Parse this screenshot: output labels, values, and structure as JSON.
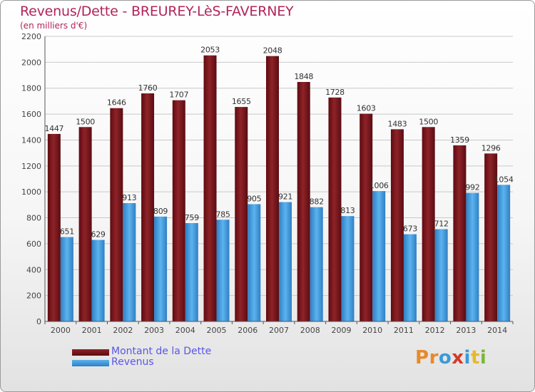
{
  "title": "Revenus/Dette - BREUREY-LèS-FAVERNEY",
  "subtitle": "(en milliers d'€)",
  "colors": {
    "title": "#b1245a",
    "legend_text": "#5a56e6",
    "series_dette": "#7a1a1f",
    "series_revenus": "#4aa3e6"
  },
  "logo": {
    "letters": [
      "P",
      "r",
      "o",
      "x",
      "i",
      "t",
      "i"
    ],
    "colors": [
      "#e8892b",
      "#e8892b",
      "#3a9ad9",
      "#d23a2a",
      "#3a9ad9",
      "#e8b82b",
      "#7ab83a"
    ]
  },
  "chart_data": {
    "type": "bar",
    "categories": [
      "2000",
      "2001",
      "2002",
      "2003",
      "2004",
      "2005",
      "2006",
      "2007",
      "2008",
      "2009",
      "2010",
      "2011",
      "2012",
      "2013",
      "2014"
    ],
    "series": [
      {
        "name": "Montant de la Dette",
        "values": [
          1447,
          1500,
          1646,
          1760,
          1707,
          2053,
          1655,
          2048,
          1848,
          1728,
          1603,
          1483,
          1500,
          1359,
          1296
        ]
      },
      {
        "name": "Revenus",
        "values": [
          651,
          629,
          913,
          809,
          759,
          785,
          905,
          921,
          882,
          813,
          1006,
          673,
          712,
          992,
          1054
        ]
      }
    ],
    "ylim": [
      0,
      2200
    ],
    "yticks": [
      "0",
      "200",
      "400",
      "600",
      "800",
      "1000",
      "1200",
      "1400",
      "1600",
      "1800",
      "2000",
      "2200"
    ],
    "grid": true,
    "legend_position": "bottom-left"
  }
}
